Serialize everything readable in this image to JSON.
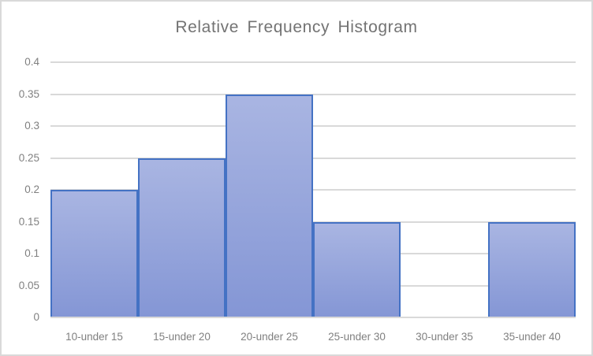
{
  "chart_data": {
    "type": "bar",
    "subtype": "histogram",
    "title": "Relative Frequency Histogram",
    "xlabel": "",
    "ylabel": "",
    "categories": [
      "10-under 15",
      "15-under 20",
      "20-under 25",
      "25-under 30",
      "30-under 35",
      "35-under 40"
    ],
    "values": [
      0.2,
      0.25,
      0.35,
      0.15,
      0,
      0.15
    ],
    "ylim": [
      0,
      0.4
    ],
    "ytick_labels": [
      "0",
      "0.05",
      "0.1",
      "0.15",
      "0.2",
      "0.25",
      "0.3",
      "0.35",
      "0.4"
    ],
    "ytick_values": [
      0,
      0.05,
      0.1,
      0.15,
      0.2,
      0.25,
      0.3,
      0.35,
      0.4
    ],
    "grid": "horizontal",
    "legend": "none",
    "gap_between_bars": false,
    "colors": {
      "bar_fill_top": "#A9B5E2",
      "bar_fill_bottom": "#8496D5",
      "bar_border": "#4472C4",
      "gridline": "#D9D9D9",
      "axis_line": "#D9D9D9",
      "title_text": "#737373",
      "label_text": "#808080",
      "chart_border": "#D9D9D9",
      "background": "#FFFFFF"
    }
  }
}
